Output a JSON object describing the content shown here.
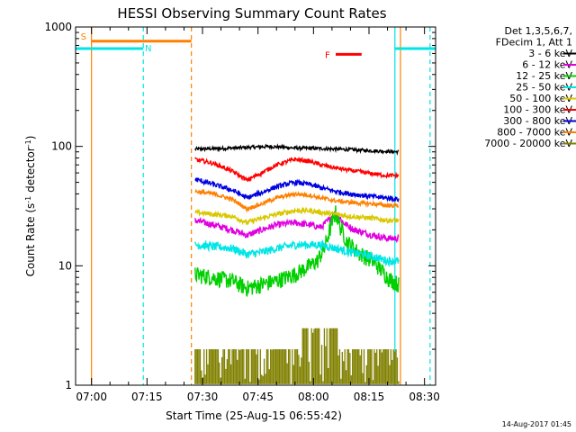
{
  "chart_data": {
    "type": "line",
    "title": "HESSI Observing Summary Count Rates",
    "xlabel": "Start Time (25-Aug-15 06:55:42)",
    "ylabel_main": "Count Rate (s",
    "ylabel_sup1": "-1",
    "ylabel_mid": " detector",
    "ylabel_sup2": "-1",
    "ylabel_end": ")",
    "x_unit": "minutes after 07:00 UT",
    "xlim": [
      -4.3,
      93
    ],
    "ylim": [
      1,
      1000
    ],
    "y_scale": "log",
    "x_ticks": [
      {
        "value": 0,
        "label": "07:00"
      },
      {
        "value": 15,
        "label": "07:15"
      },
      {
        "value": 30,
        "label": "07:30"
      },
      {
        "value": 45,
        "label": "07:45"
      },
      {
        "value": 60,
        "label": "08:00"
      },
      {
        "value": 75,
        "label": "08:15"
      },
      {
        "value": 90,
        "label": "08:30"
      }
    ],
    "y_ticks": [
      {
        "value": 1,
        "label": "1"
      },
      {
        "value": 10,
        "label": "10"
      },
      {
        "value": 100,
        "label": "100"
      },
      {
        "value": 1000,
        "label": "1000"
      }
    ],
    "legend_header": [
      "Det 1,3,5,6,7,",
      "FDecim 1, Att 1"
    ],
    "legend_position": "right",
    "data_range": [
      28,
      83
    ],
    "series": [
      {
        "name": "3 - 6 keV",
        "color": "#000000",
        "x": [
          28,
          35,
          42,
          48,
          55,
          62,
          70,
          76,
          83
        ],
        "values": [
          95,
          96,
          98,
          100,
          97,
          96,
          94,
          92,
          90
        ],
        "noise": 0.02
      },
      {
        "name": "6 - 12 keV",
        "color": "#e000e0",
        "x": [
          28,
          33,
          38,
          42,
          46,
          50,
          55,
          59,
          62,
          64,
          66,
          68,
          71,
          76,
          80,
          83
        ],
        "values": [
          24,
          22,
          20,
          18,
          20,
          22,
          23,
          22,
          21,
          24,
          28,
          23,
          20,
          18,
          17,
          17
        ],
        "noise": 0.04
      },
      {
        "name": "12 - 25 keV",
        "color": "#00d000",
        "x": [
          28,
          33,
          38,
          42,
          46,
          50,
          55,
          59,
          61,
          63,
          64,
          65,
          66,
          67,
          69,
          72,
          76,
          80,
          83
        ],
        "values": [
          8.5,
          8,
          7.5,
          6.5,
          7,
          7.5,
          8.5,
          10,
          11,
          14,
          18,
          23,
          28,
          22,
          16,
          13,
          11,
          8,
          7
        ],
        "noise": 0.1
      },
      {
        "name": "25 - 50 keV",
        "color": "#00e5e5",
        "x": [
          28,
          33,
          38,
          42,
          46,
          50,
          55,
          59,
          62,
          66,
          70,
          76,
          80,
          83
        ],
        "values": [
          15,
          14.5,
          14,
          12.5,
          13,
          14,
          15,
          15,
          15,
          14,
          13,
          12,
          11,
          11
        ],
        "noise": 0.05
      },
      {
        "name": "50 - 100 keV",
        "color": "#d8c800",
        "x": [
          28,
          33,
          38,
          42,
          46,
          50,
          55,
          59,
          62,
          66,
          70,
          76,
          80,
          83
        ],
        "values": [
          28,
          27,
          26,
          23,
          25,
          27,
          29,
          29,
          28,
          27,
          26,
          25,
          24,
          24
        ],
        "noise": 0.03
      },
      {
        "name": "100 - 300 keV",
        "color": "#ff0000",
        "x": [
          28,
          33,
          38,
          42,
          46,
          50,
          55,
          59,
          62,
          66,
          70,
          76,
          80,
          83
        ],
        "values": [
          78,
          72,
          62,
          52,
          60,
          70,
          78,
          75,
          70,
          66,
          63,
          59,
          57,
          57
        ],
        "noise": 0.025
      },
      {
        "name": "300 - 800 keV",
        "color": "#0000e0",
        "x": [
          28,
          33,
          38,
          42,
          46,
          50,
          55,
          59,
          62,
          66,
          70,
          76,
          80,
          83
        ],
        "values": [
          53,
          48,
          43,
          37,
          41,
          46,
          50,
          48,
          45,
          42,
          40,
          38,
          37,
          36
        ],
        "noise": 0.03
      },
      {
        "name": "800 - 7000 keV",
        "color": "#ff8000",
        "x": [
          28,
          33,
          38,
          42,
          46,
          50,
          55,
          59,
          62,
          66,
          70,
          76,
          80,
          83
        ],
        "values": [
          42,
          40,
          36,
          30,
          33,
          37,
          40,
          39,
          37,
          35,
          34,
          33,
          32,
          32
        ],
        "noise": 0.025
      },
      {
        "name": "7000 - 20000 keV",
        "color": "#808000",
        "x": [
          28,
          83
        ],
        "values": [
          2,
          2
        ],
        "noise": 0
      }
    ],
    "flags": [
      {
        "label": "S",
        "color": "#ff8000",
        "x_start": 0,
        "x_end": 27,
        "y": 760
      },
      {
        "label": "N",
        "color": "#00e5e5",
        "x_start": -4.3,
        "x_end": 14,
        "y": 660
      },
      {
        "label": "F",
        "color": "#ff0000",
        "x_start": 66,
        "x_end": 73,
        "y": 590
      },
      {
        "label": "",
        "color": "#00e5e5",
        "x_start": 82,
        "x_end": 93,
        "y": 660
      }
    ],
    "vertical_lines": [
      {
        "x": 0,
        "color": "#ff8000",
        "style": "solid"
      },
      {
        "x": 14,
        "color": "#00e5e5",
        "style": "dashed"
      },
      {
        "x": 27,
        "color": "#ff8000",
        "style": "dashed"
      },
      {
        "x": 82,
        "color": "#00e5e5",
        "style": "solid"
      },
      {
        "x": 83.5,
        "color": "#ff8000",
        "style": "solid"
      },
      {
        "x": 91.5,
        "color": "#00e5e5",
        "style": "dashed"
      }
    ]
  },
  "footer": {
    "timestamp": "14-Aug-2017 01:45"
  }
}
